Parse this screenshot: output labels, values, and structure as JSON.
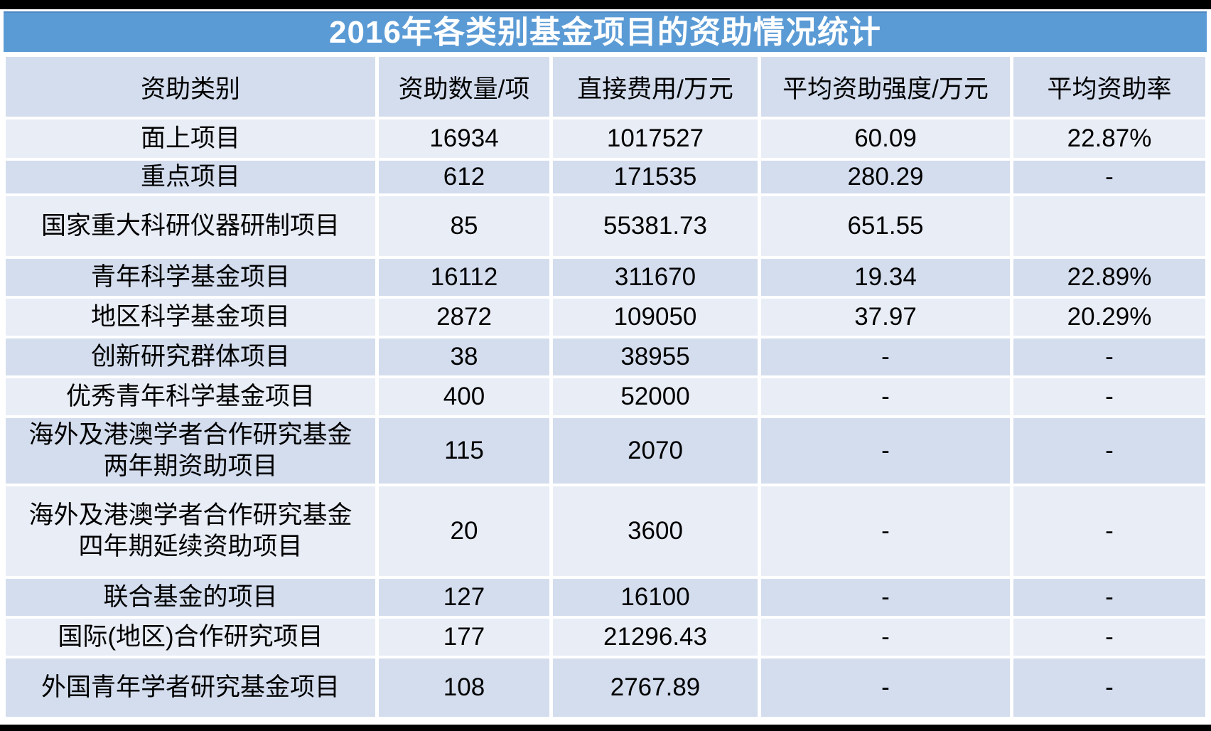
{
  "title": "2016年各类别基金项目的资助情况统计",
  "colors": {
    "title_bar": "#5B9BD5",
    "title_text": "#FFFFFF",
    "header_bg": "#D3DDEE",
    "row_dark": "#D3DDEE",
    "row_light": "#E9EDF6",
    "grid_gap": "#FFFFFF",
    "text": "#000000",
    "frame_bars": "#000000"
  },
  "chart_data": {
    "type": "table",
    "title": "2016年各类别基金项目的资助情况统计",
    "columns": [
      "资助类别",
      "资助数量/项",
      "直接费用/万元",
      "平均资助强度/万元",
      "平均资助率"
    ],
    "rows": [
      [
        "面上项目",
        "16934",
        "1017527",
        "60.09",
        "22.87%"
      ],
      [
        "重点项目",
        "612",
        "171535",
        "280.29",
        "-"
      ],
      [
        "国家重大科研仪器研制项目",
        "85",
        "55381.73",
        "651.55",
        ""
      ],
      [
        "青年科学基金项目",
        "16112",
        "311670",
        "19.34",
        "22.89%"
      ],
      [
        "地区科学基金项目",
        "2872",
        "109050",
        "37.97",
        "20.29%"
      ],
      [
        "创新研究群体项目",
        "38",
        "38955",
        "-",
        "-"
      ],
      [
        "优秀青年科学基金项目",
        "400",
        "52000",
        "-",
        "-"
      ],
      [
        "海外及港澳学者合作研究基金\n两年期资助项目",
        "115",
        "2070",
        "-",
        "-"
      ],
      [
        "海外及港澳学者合作研究基金\n四年期延续资助项目",
        "20",
        "3600",
        "-",
        "-"
      ],
      [
        "联合基金的项目",
        "127",
        "16100",
        "-",
        "-"
      ],
      [
        "国际(地区)合作研究项目",
        "177",
        "21296.43",
        "-",
        "-"
      ],
      [
        "外国青年学者研究基金项目",
        "108",
        "2767.89",
        "-",
        "-"
      ]
    ]
  }
}
